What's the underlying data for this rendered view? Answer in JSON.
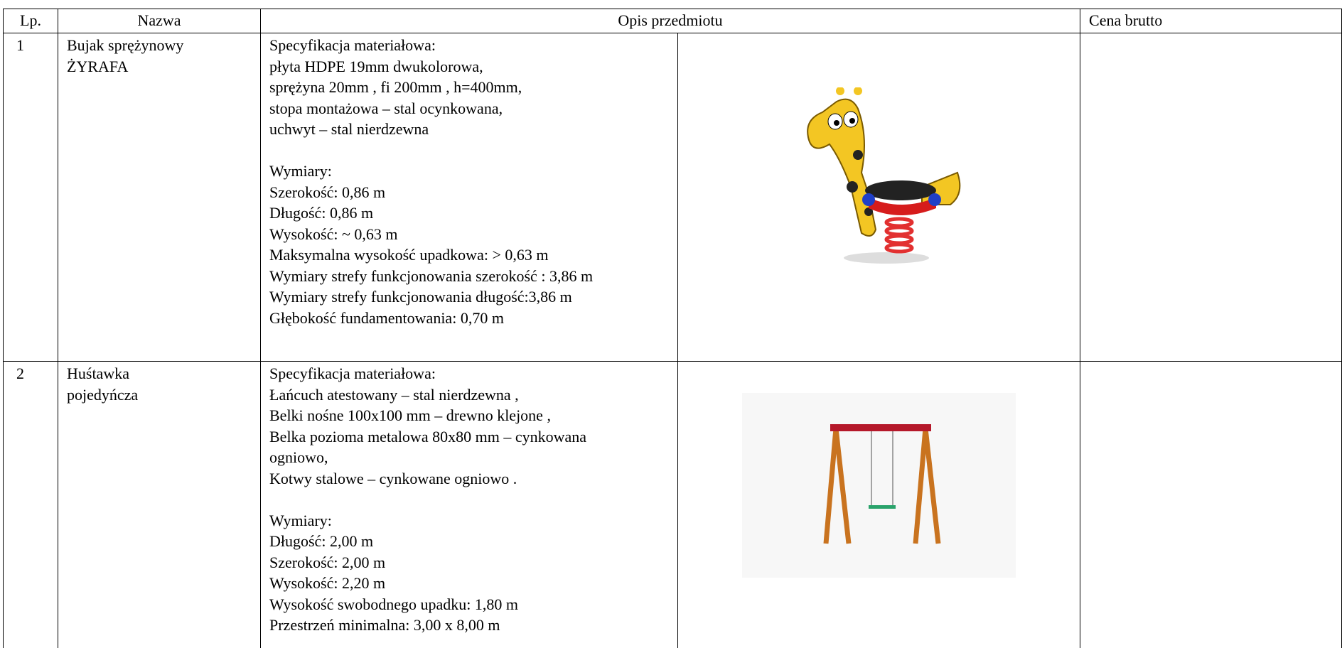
{
  "table": {
    "header": [
      "Lp.",
      "Nazwa",
      "Opis przedmiotu",
      "Cena brutto"
    ],
    "rows": [
      {
        "lp": "1",
        "name": [
          "Bujak sprężynowy",
          "ŻYRAFA"
        ],
        "spec": [
          "Specyfikacja materiałowa:",
          "płyta HDPE 19mm dwukolorowa,",
          "sprężyna 20mm , fi 200mm , h=400mm,",
          "stopa montażowa – stal ocynkowana,",
          "uchwyt – stal nierdzewna"
        ],
        "dims": [
          "Wymiary:",
          "Szerokość: 0,86 m",
          "Długość: 0,86 m",
          "Wysokość: ~ 0,63 m",
          "Maksymalna wysokość upadkowa: > 0,63 m",
          "Wymiary strefy funkcjonowania szerokość : 3,86 m",
          "Wymiary strefy funkcjonowania długość:3,86 m",
          "Głębokość fundamentowania: 0,70 m"
        ]
      },
      {
        "lp": "2",
        "name": [
          "Huśtawka",
          "pojedyńcza"
        ],
        "spec": [
          "Specyfikacja materiałowa:",
          "Łańcuch atestowany – stal nierdzewna ,",
          "Belki nośne 100x100 mm – drewno klejone ,",
          "Belka pozioma metalowa 80x80 mm – cynkowana",
          "ogniowo,",
          "Kotwy stalowe – cynkowane ogniowo ."
        ],
        "dims": [
          "Wymiary:",
          "Długość: 2,00 m",
          "Szerokość: 2,00 m",
          "Wysokość: 2,20 m",
          "Wysokość swobodnego upadku: 1,80 m",
          "Przestrzeń minimalna: 3,00 x 8,00 m"
        ]
      }
    ]
  }
}
